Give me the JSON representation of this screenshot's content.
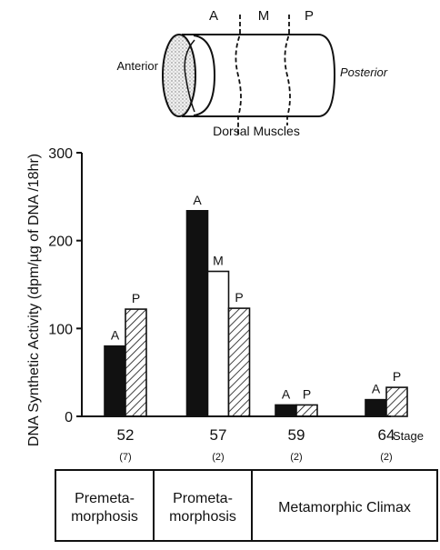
{
  "diagram": {
    "segment_labels": [
      "A",
      "M",
      "P"
    ],
    "anterior": "Anterior",
    "posterior": "Posterior",
    "caption": "Dorsal Muscles"
  },
  "chart_data": {
    "type": "bar",
    "ylabel": "DNA Synthetic Activity (dpm/µg of DNA /18hr)",
    "xlabel": "Stage",
    "ylim": [
      0,
      300
    ],
    "yticks": [
      0,
      100,
      200,
      300
    ],
    "categories": [
      "52",
      "57",
      "59",
      "64"
    ],
    "sample_sizes": [
      "(7)",
      "(2)",
      "(2)",
      "(2)"
    ],
    "series": [
      {
        "name": "A",
        "fill": "solid",
        "values": [
          80,
          234,
          13,
          19
        ]
      },
      {
        "name": "M",
        "fill": "open",
        "values": [
          null,
          165,
          null,
          null
        ]
      },
      {
        "name": "P",
        "fill": "hatched",
        "values": [
          122,
          123,
          13,
          33
        ]
      }
    ],
    "colors": {
      "ink": "#111111",
      "paper": "#ffffff"
    }
  },
  "periods": [
    "Premeta-\nmorphosis",
    "Prometa-\nmorphosis",
    "Metamorphic Climax"
  ]
}
